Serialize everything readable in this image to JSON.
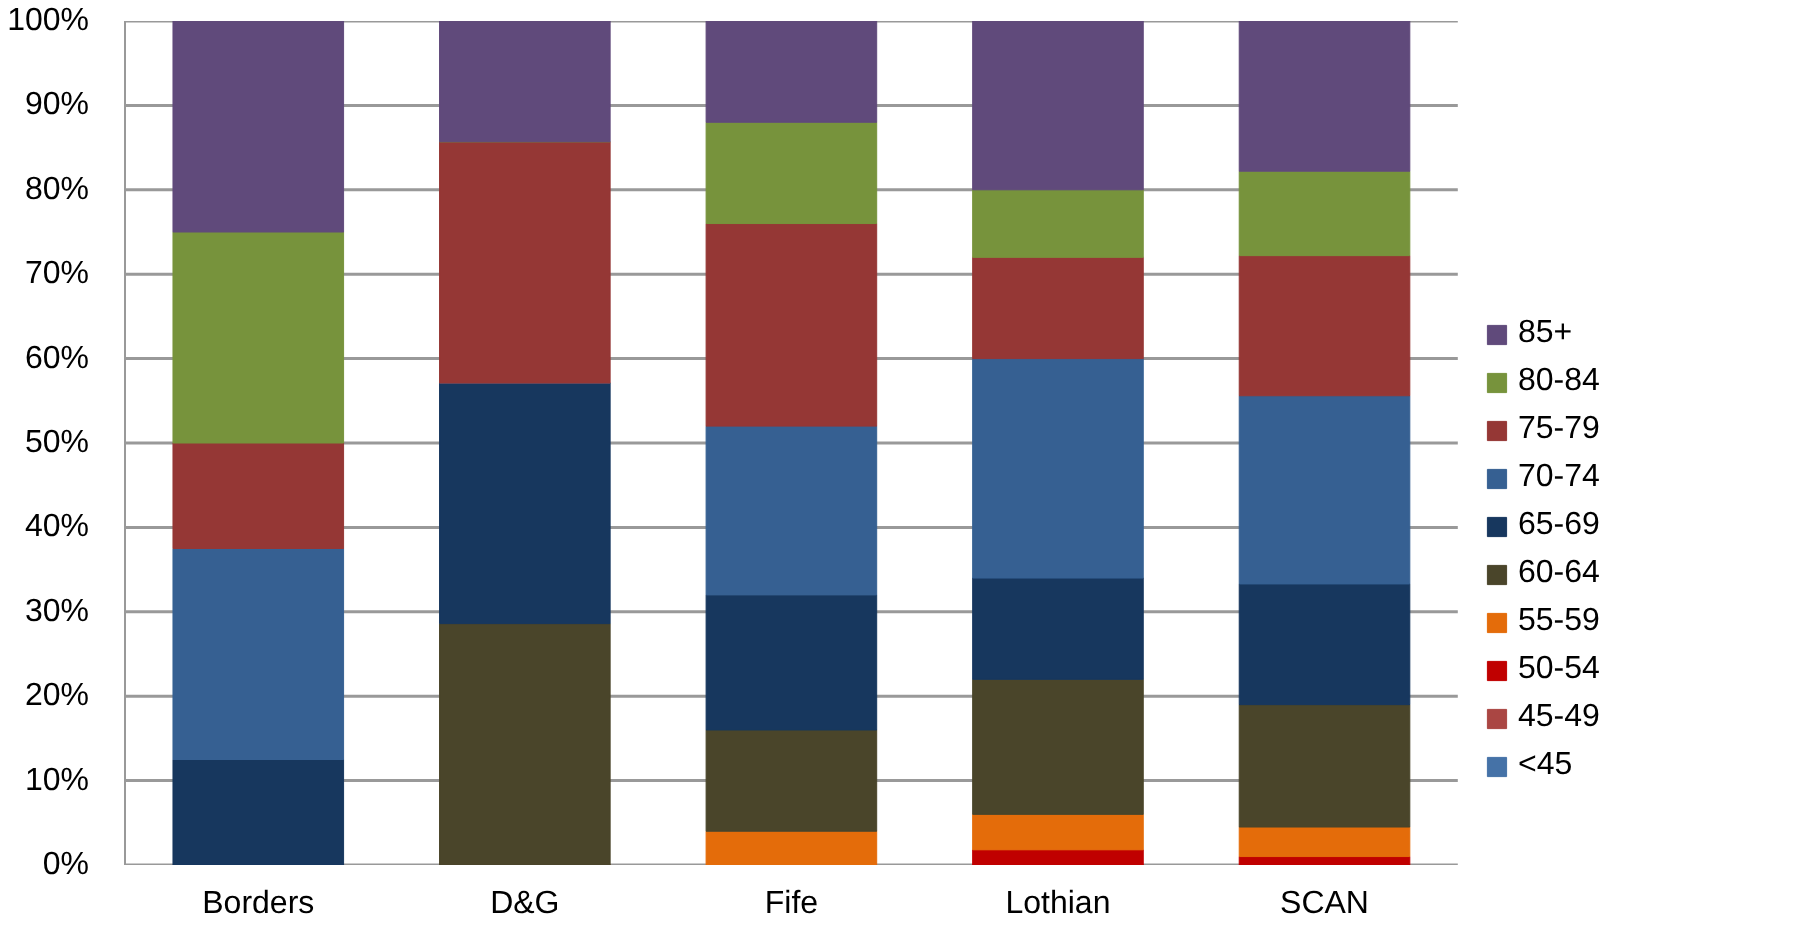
{
  "chart_data": {
    "type": "bar",
    "stacked": true,
    "categories": [
      "Borders",
      "D&G",
      "Fife",
      "Lothian",
      "SCAN"
    ],
    "series": [
      {
        "name": "<45",
        "color": "#4572a7",
        "values": [
          0,
          0,
          0,
          0,
          0
        ]
      },
      {
        "name": "45-49",
        "color": "#aa4643",
        "values": [
          0,
          0,
          0,
          0,
          0
        ]
      },
      {
        "name": "50-54",
        "color": "#c00000",
        "values": [
          0,
          0,
          0,
          1.8,
          1
        ]
      },
      {
        "name": "55-59",
        "color": "#e46c0a",
        "values": [
          0,
          0,
          4,
          4.2,
          3.5
        ]
      },
      {
        "name": "60-64",
        "color": "#4a452a",
        "values": [
          0,
          28.6,
          12,
          16,
          14.5
        ]
      },
      {
        "name": "65-69",
        "color": "#17375e",
        "values": [
          12.5,
          28.5,
          16,
          12,
          14.3
        ]
      },
      {
        "name": "70-74",
        "color": "#366092",
        "values": [
          25,
          0,
          20,
          26,
          22.3
        ]
      },
      {
        "name": "75-79",
        "color": "#953735",
        "values": [
          12.5,
          28.6,
          24,
          12,
          16.6
        ]
      },
      {
        "name": "80-84",
        "color": "#77933c",
        "values": [
          25,
          0,
          12,
          8,
          10
        ]
      },
      {
        "name": "85+",
        "color": "#604a7b",
        "values": [
          25,
          14.3,
          12,
          20,
          17.8
        ]
      }
    ],
    "ylim": [
      0,
      100
    ],
    "yticks": [
      {
        "value": 0,
        "label": "0%"
      },
      {
        "value": 10,
        "label": "10%"
      },
      {
        "value": 20,
        "label": "20%"
      },
      {
        "value": 30,
        "label": "30%"
      },
      {
        "value": 40,
        "label": "40%"
      },
      {
        "value": 50,
        "label": "50%"
      },
      {
        "value": 60,
        "label": "60%"
      },
      {
        "value": 70,
        "label": "70%"
      },
      {
        "value": 80,
        "label": "80%"
      },
      {
        "value": 90,
        "label": "90%"
      },
      {
        "value": 100,
        "label": "100%"
      }
    ],
    "grid": "y",
    "legend": "right"
  }
}
